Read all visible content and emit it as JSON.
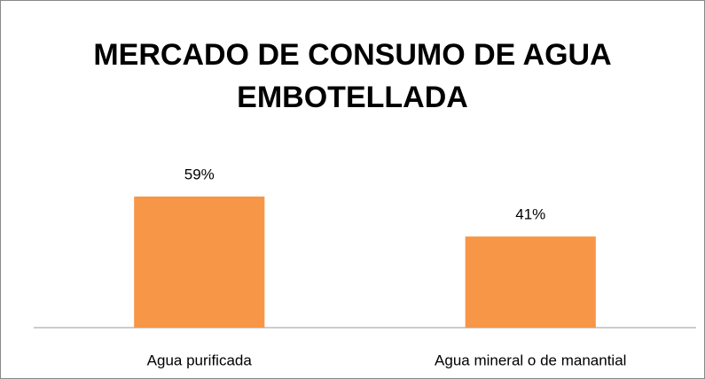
{
  "chart_data": {
    "type": "bar",
    "title": "MERCADO DE CONSUMO DE AGUA EMBOTELLADA",
    "categories": [
      "Agua purificada",
      "Agua mineral o de manantial"
    ],
    "values": [
      59,
      41
    ],
    "value_labels": [
      "59%",
      "41%"
    ],
    "color": "#f79646"
  }
}
